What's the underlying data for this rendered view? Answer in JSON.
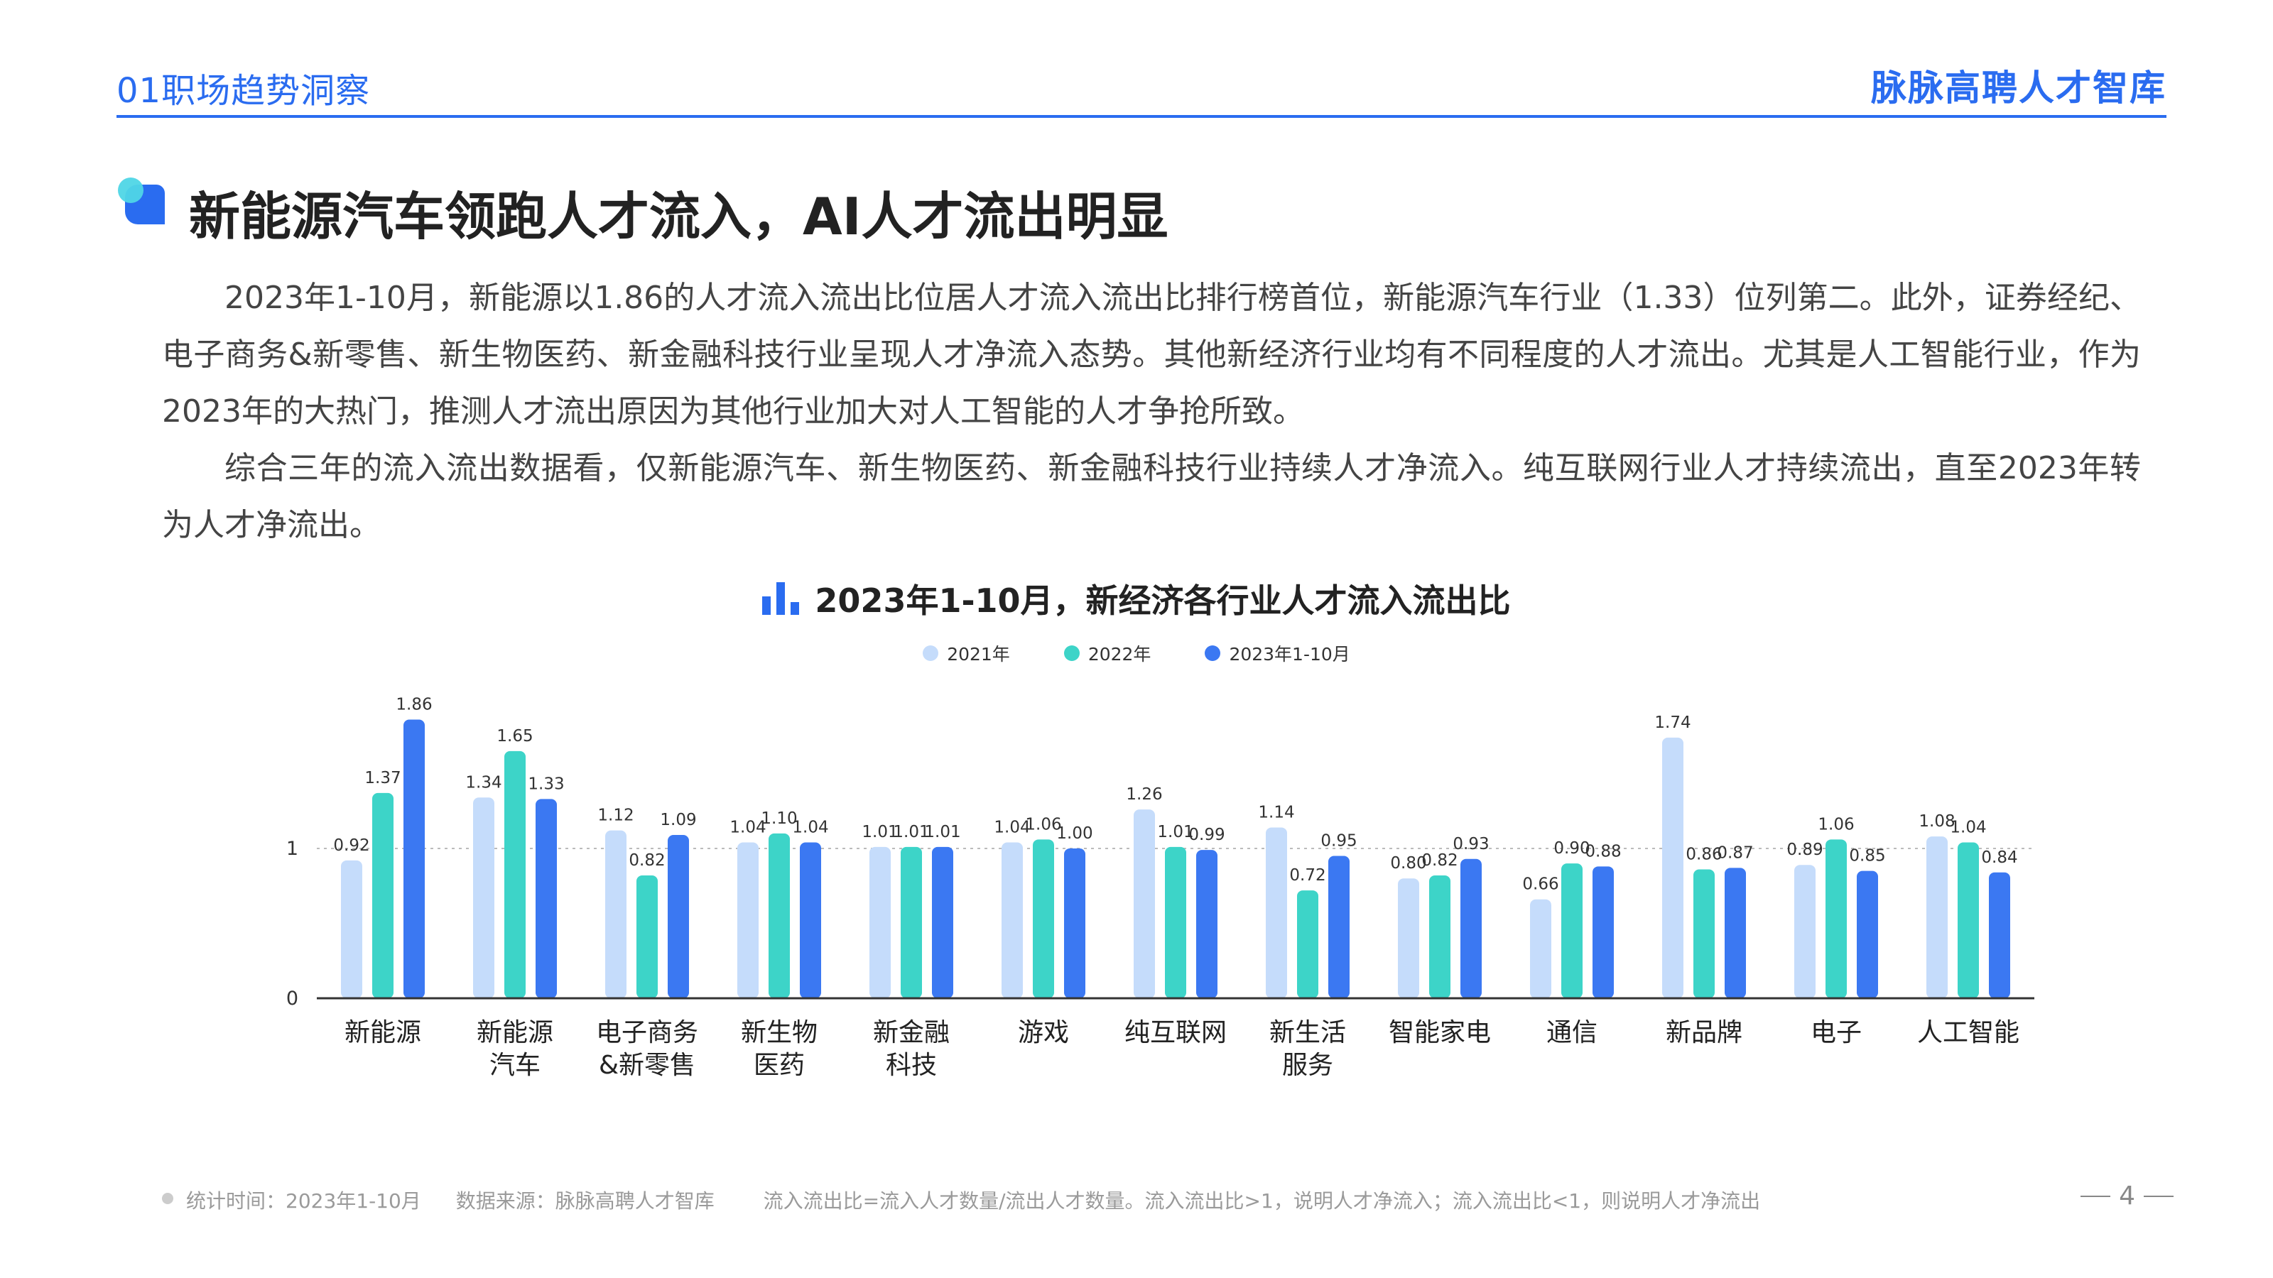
{
  "header": {
    "section": "01职场趋势洞察",
    "brand": "脉脉高聘人才智库"
  },
  "title": "新能源汽车领跑人才流入，AI人才流出明显",
  "paragraphs": [
    "2023年1-10月，新能源以1.86的人才流入流出比位居人才流入流出比排行榜首位，新能源汽车行业（1.33）位列第二。此外，证券经纪、 电子商务&新零售、新生物医药、新金融科技行业呈现人才净流入态势。其他新经济行业均有不同程度的人才流出。尤其是人工智能行业，作为2023年的大热门，推测人才流出原因为其他行业加大对人工智能的人才争抢所致。",
    "综合三年的流入流出数据看，仅新能源汽车、新生物医药、新金融科技行业持续人才净流入。纯互联网行业人才持续流出，直至2023年转为人才净流出。"
  ],
  "colors": {
    "accent": "#2a6cf0",
    "series_2021": "#c5dcfb",
    "series_2022": "#3dd4c8",
    "series_2023": "#3b78f2",
    "axis": "#333333",
    "reference_line": "#bbbbbb"
  },
  "icons": {
    "title": "speech-bubble-icon",
    "chart_title": "bar-chart-icon",
    "footer": "dot-icon"
  },
  "chart_data": {
    "type": "bar",
    "title": "2023年1-10月，新经济各行业人才流入流出比",
    "xlabel": "",
    "ylabel": "",
    "ylim": [
      0,
      1.86
    ],
    "yticks": [
      "0",
      "1"
    ],
    "reference_line": 1,
    "legend_position": "top-center",
    "grid": false,
    "categories": [
      [
        "新能源"
      ],
      [
        "新能源",
        "汽车"
      ],
      [
        "电子商务",
        "&新零售"
      ],
      [
        "新生物",
        "医药"
      ],
      [
        "新金融",
        "科技"
      ],
      [
        "游戏"
      ],
      [
        "纯互联网"
      ],
      [
        "新生活",
        "服务"
      ],
      [
        "智能家电"
      ],
      [
        "通信"
      ],
      [
        "新品牌"
      ],
      [
        "电子"
      ],
      [
        "人工智能"
      ]
    ],
    "series": [
      {
        "name": "2021年",
        "values": [
          0.92,
          1.34,
          1.12,
          1.04,
          1.01,
          1.04,
          1.26,
          1.14,
          0.8,
          0.66,
          1.74,
          0.89,
          1.08
        ],
        "labels": [
          "0.92",
          "1.34",
          "1.12",
          "1.04",
          "1.01",
          "1.04",
          "1.26",
          "1.14",
          "0.80",
          "0.66",
          "1.74",
          "0.89",
          "1.08"
        ]
      },
      {
        "name": "2022年",
        "values": [
          1.37,
          1.65,
          0.82,
          1.1,
          1.01,
          1.06,
          1.01,
          0.72,
          0.82,
          0.9,
          0.86,
          1.06,
          1.04
        ],
        "labels": [
          "1.37",
          "1.65",
          "0.82",
          "1.10",
          "1.01",
          "1.06",
          "1.01",
          "0.72",
          "0.82",
          "0.90",
          "0.86",
          "1.06",
          "1.04"
        ]
      },
      {
        "name": "2023年1-10月",
        "values": [
          1.86,
          1.33,
          1.09,
          1.04,
          1.01,
          1.0,
          0.99,
          0.95,
          0.93,
          0.88,
          0.87,
          0.85,
          0.84
        ],
        "labels": [
          "1.86",
          "1.33",
          "1.09",
          "1.04",
          "1.01",
          "1.00",
          "0.99",
          "0.95",
          "0.93",
          "0.88",
          "0.87",
          "0.85",
          "0.84"
        ]
      }
    ]
  },
  "footer": {
    "time": "统计时间：2023年1-10月",
    "source": "数据来源：脉脉高聘人才智库",
    "note": "流入流出比=流入人才数量/流出人才数量。流入流出比>1，说明人才净流入；流入流出比<1，则说明人才净流出"
  },
  "page_number": "4"
}
